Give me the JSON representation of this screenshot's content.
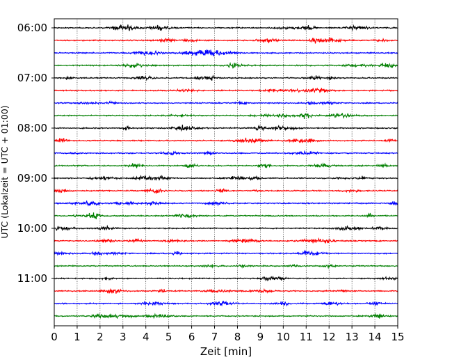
{
  "chart_data": {
    "type": "line",
    "title": "",
    "xlabel": "Zeit  [min]",
    "ylabel": "UTC (Lokalzeit = UTC + 01:00)",
    "xlim": [
      0,
      15
    ],
    "x_ticks": [
      "0",
      "1",
      "2",
      "3",
      "4",
      "5",
      "6",
      "7",
      "8",
      "9",
      "10",
      "11",
      "12",
      "13",
      "14",
      "15"
    ],
    "y_ticks": [
      "06:00",
      "07:00",
      "08:00",
      "09:00",
      "10:00",
      "11:00"
    ],
    "grid": "vertical dotted lines at each minute",
    "trace_colors": [
      "#000000",
      "#ff0000",
      "#0000ff",
      "#007f00"
    ],
    "traces_per_hour": 4,
    "minutes_per_trace": 15,
    "hours": 6,
    "series_start_utc": "06:00",
    "series_end_utc": "12:00"
  }
}
